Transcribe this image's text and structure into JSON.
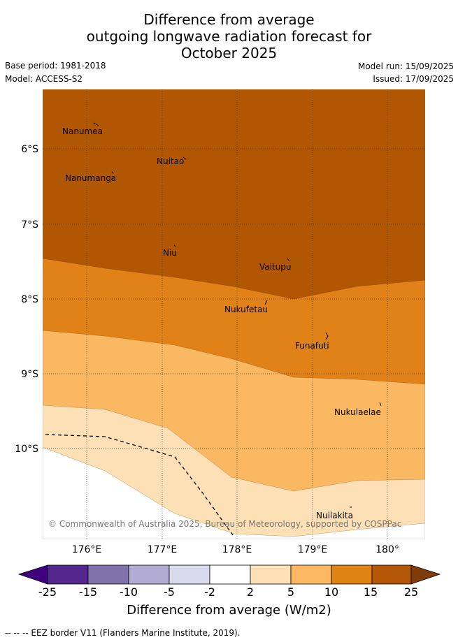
{
  "title": {
    "line1": "Difference from average",
    "line2": "outgoing longwave radiation forecast for",
    "line3": "October 2025"
  },
  "meta": {
    "base_period": "Base period: 1981-2018",
    "model": "Model: ACCESS-S2",
    "model_run": "Model run: 15/09/2025",
    "issued": "Issued: 17/09/2025"
  },
  "map": {
    "longitude_labels": [
      "176°E",
      "177°E",
      "178°E",
      "179°E",
      "180°"
    ],
    "latitude_labels": [
      "6°S",
      "7°S",
      "8°S",
      "9°S",
      "10°S"
    ],
    "places": [
      "Nanumea",
      "Nuitao",
      "Nanumanga",
      "Niu",
      "Vaitupu",
      "Nukufetau",
      "Funafuti",
      "Nukulaelae",
      "Nuilakita"
    ],
    "copyright": "© Commonwealth of Australia 2025, Bureau of Meteorology, supported by COSPPac",
    "fill_colors": {
      "band_15_25": "#b15704",
      "band_10_15": "#e08217",
      "band_5_10": "#fbb862",
      "band_2_5": "#fee0b6"
    }
  },
  "colorbar": {
    "ticks": [
      "-25",
      "-15",
      "-10",
      "-5",
      "-2",
      "2",
      "5",
      "10",
      "15",
      "25"
    ],
    "colors": [
      "#3f007d",
      "#54278f",
      "#8073ac",
      "#b2abd2",
      "#d8daeb",
      "#ffffff",
      "#fee0b6",
      "#fdb863",
      "#e08214",
      "#b35806",
      "#7f3b08"
    ],
    "label": "Difference from average (W/m2)"
  },
  "footer": "--  --  -- EEZ border V11 (Flanders Marine Institute, 2019)."
}
